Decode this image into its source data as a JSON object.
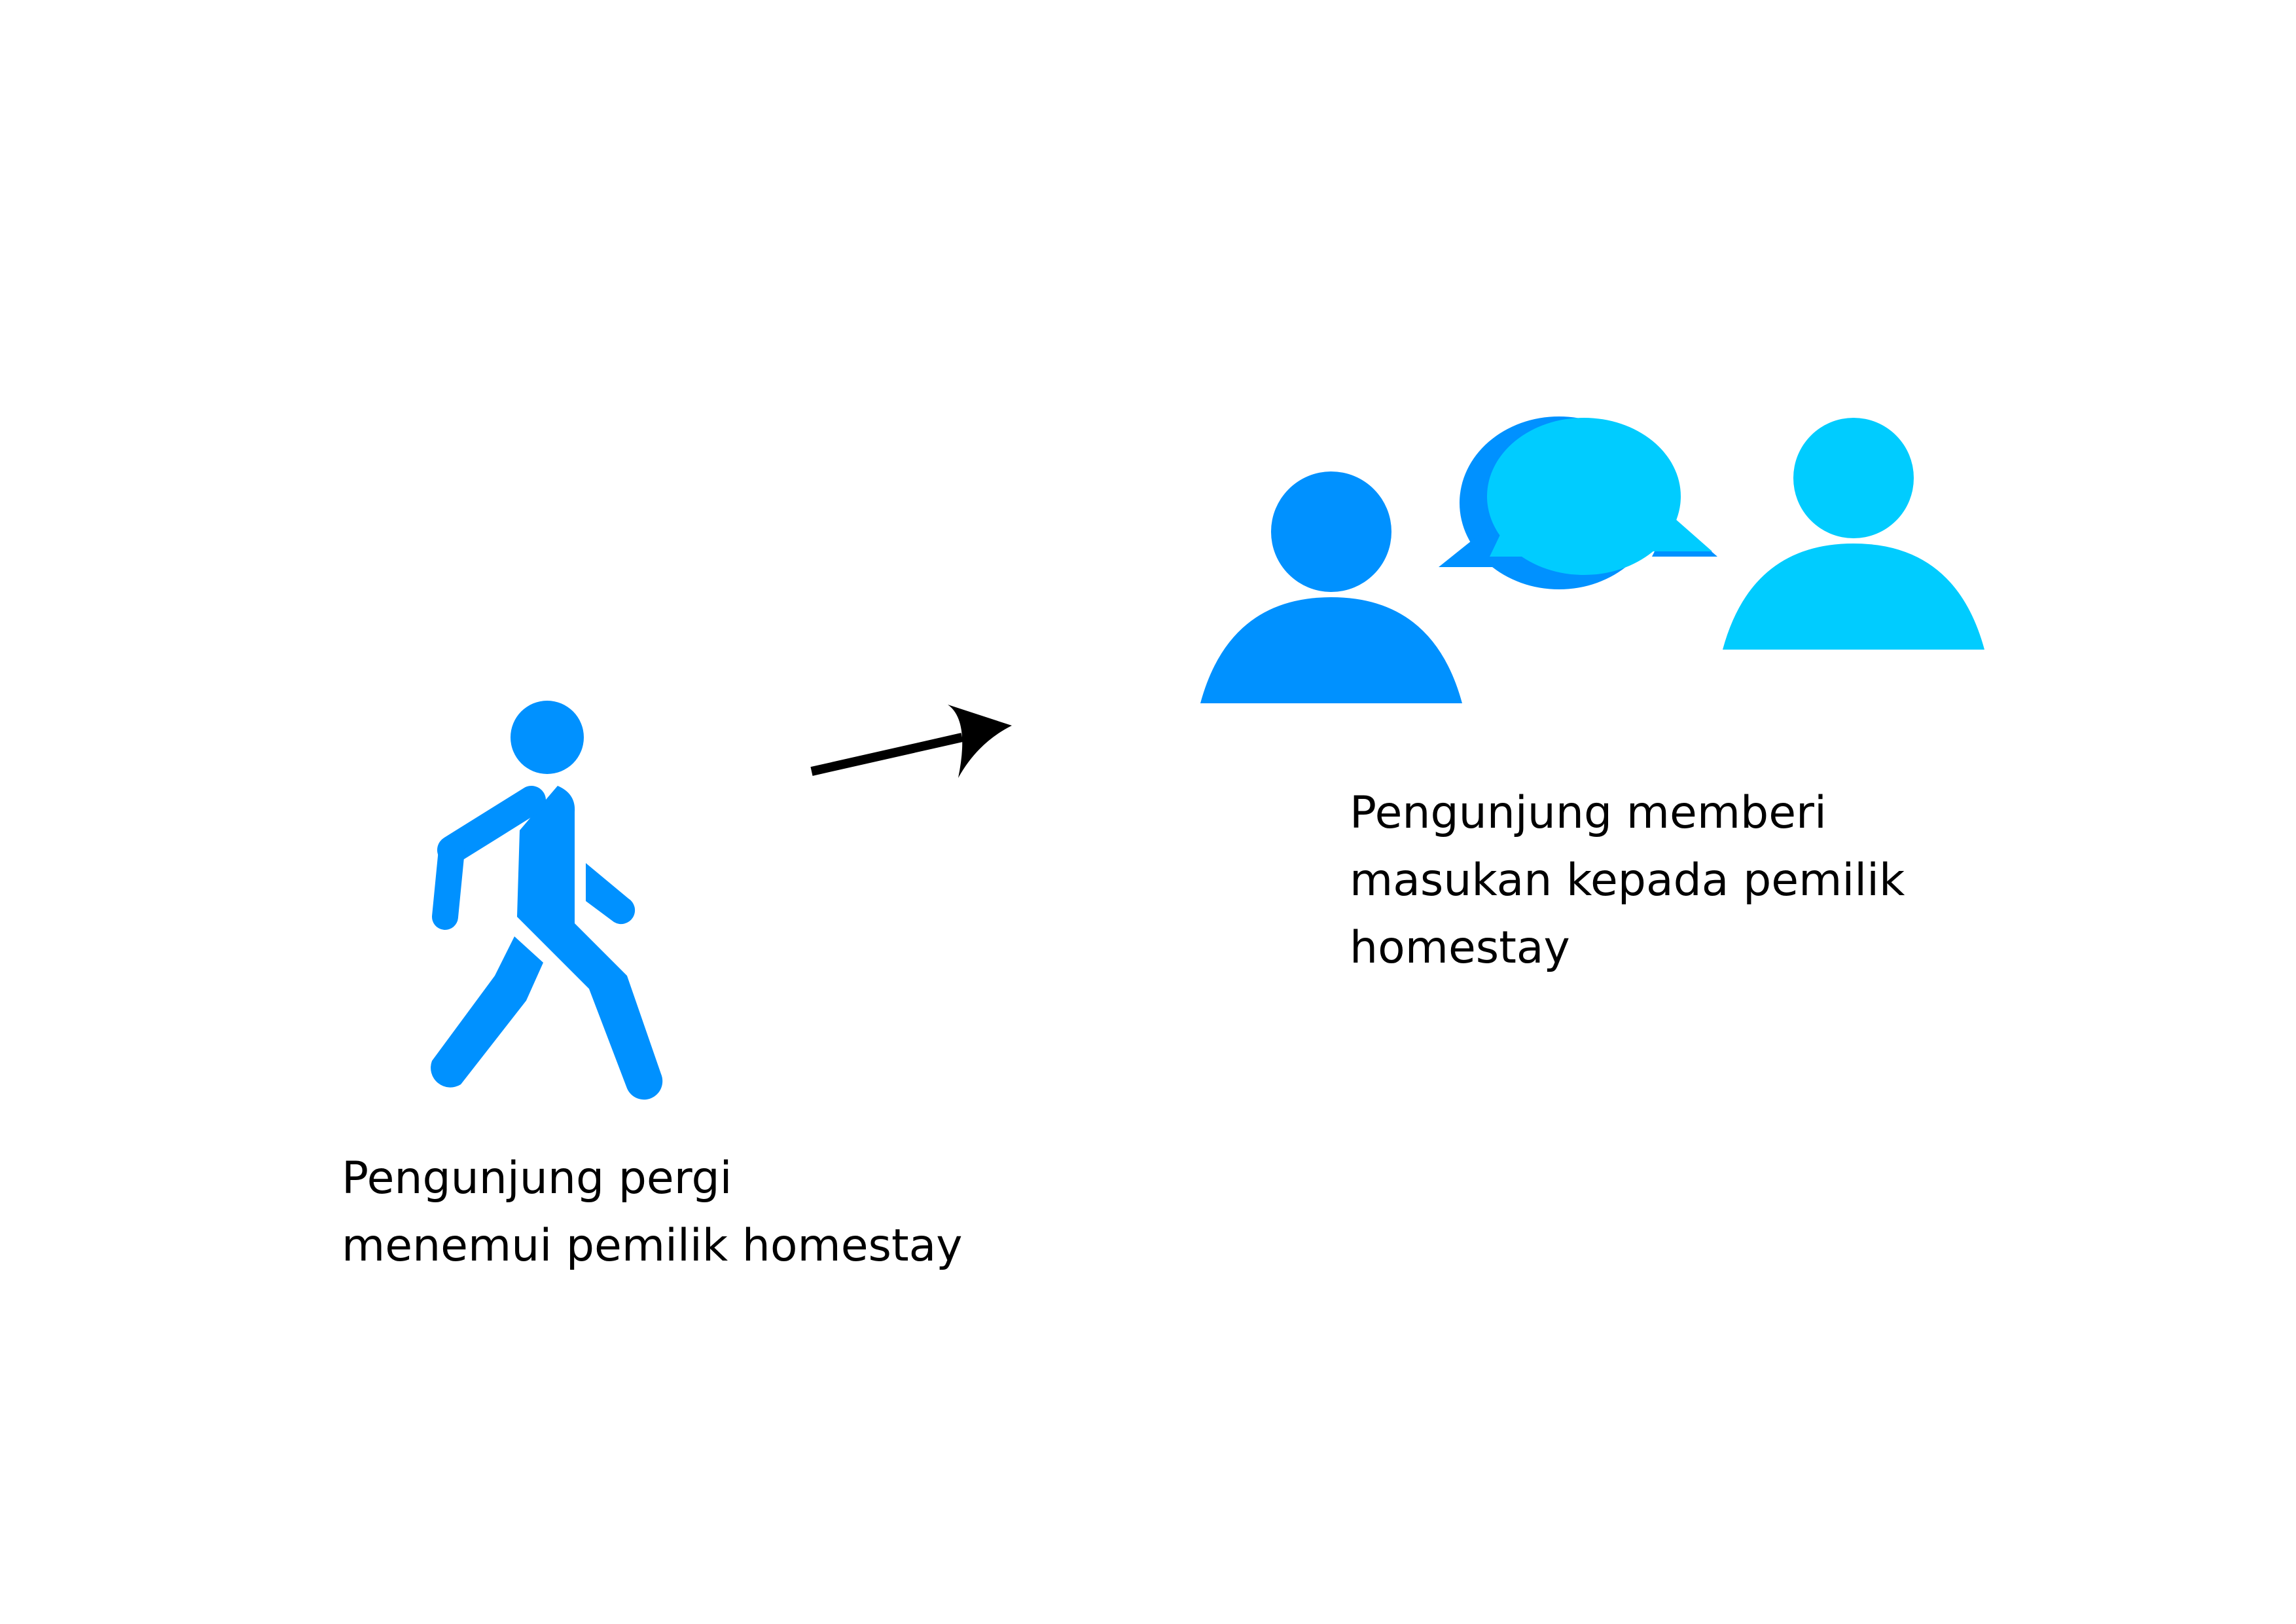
{
  "steps": [
    {
      "icon": "walking-person-icon",
      "caption_lines": [
        "Pengunjung pergi",
        "menemui pemilik homestay"
      ]
    },
    {
      "icon": "conversation-icon",
      "caption_lines": [
        "Pengunjung memberi",
        "masukan kepada pemilik",
        "homestay"
      ]
    }
  ],
  "connector": {
    "icon": "arrow-right-icon",
    "color": "#000000"
  },
  "colors": {
    "visitor_blue": "#0091FF",
    "owner_cyan": "#00CCFF",
    "text": "#000000",
    "background": "#FFFFFF"
  }
}
